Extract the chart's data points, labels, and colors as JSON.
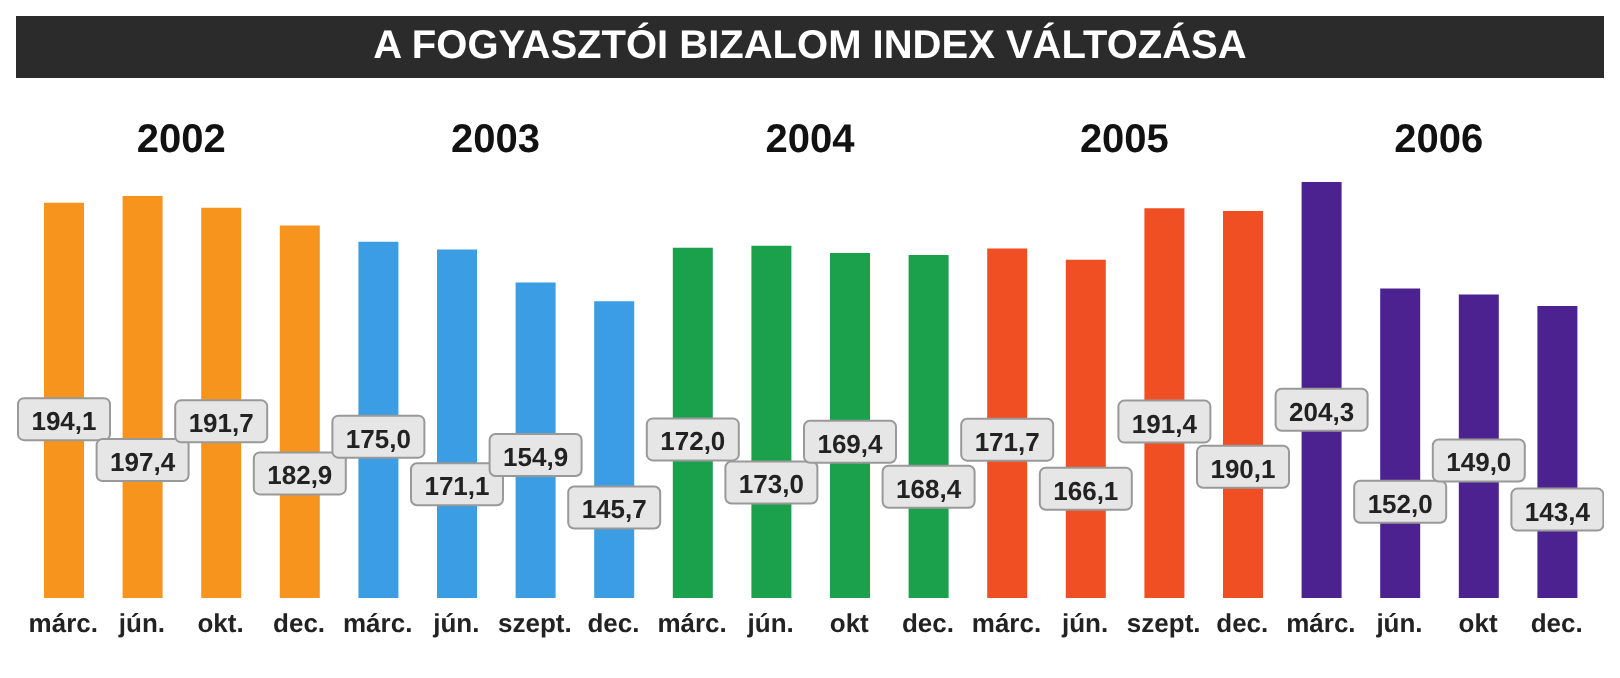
{
  "chart_data": {
    "type": "bar",
    "title": "A FOGYASZTÓI BIZALOM INDEX VÁLTOZÁSA",
    "categories": [
      "márc.",
      "jún.",
      "okt.",
      "dec.",
      "márc.",
      "jún.",
      "szept.",
      "dec.",
      "márc.",
      "jún.",
      "okt",
      "dec.",
      "márc.",
      "jún.",
      "szept.",
      "dec.",
      "márc.",
      "jún.",
      "okt",
      "dec."
    ],
    "values": [
      194.1,
      197.4,
      191.7,
      182.9,
      175.0,
      171.1,
      154.9,
      145.7,
      172.0,
      173.0,
      169.4,
      168.4,
      171.7,
      166.1,
      191.4,
      190.1,
      204.3,
      152.0,
      149.0,
      143.4
    ],
    "value_labels": [
      "194,1",
      "197,4",
      "191,7",
      "182,9",
      "175,0",
      "171,1",
      "154,9",
      "145,7",
      "172,0",
      "173,0",
      "169,4",
      "168,4",
      "171,7",
      "166,1",
      "191,4",
      "190,1",
      "204,3",
      "152,0",
      "149,0",
      "143,4"
    ],
    "colors": [
      "#f7941d",
      "#f7941d",
      "#f7941d",
      "#f7941d",
      "#3b9de3",
      "#3b9de3",
      "#3b9de3",
      "#3b9de3",
      "#1ba04b",
      "#1ba04b",
      "#1ba04b",
      "#1ba04b",
      "#f04e23",
      "#f04e23",
      "#f04e23",
      "#f04e23",
      "#4c2290",
      "#4c2290",
      "#4c2290",
      "#4c2290"
    ],
    "annotations": [
      "2002",
      "2003",
      "2004",
      "2005",
      "2006"
    ]
  }
}
